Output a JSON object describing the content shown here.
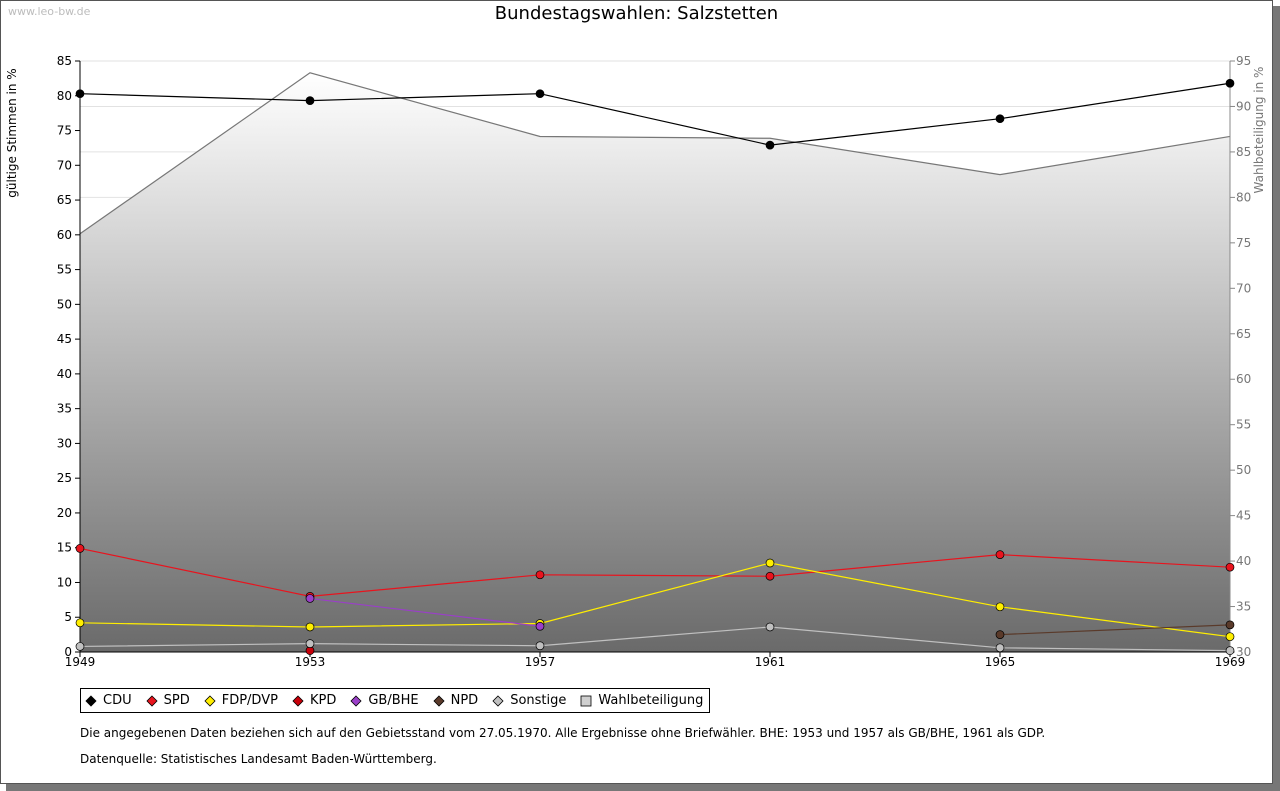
{
  "watermark": "www.leo-bw.de",
  "chart_data": {
    "type": "line",
    "title": "Bundestagswahlen: Salzstetten",
    "x": [
      "1949",
      "1953",
      "1957",
      "1961",
      "1965",
      "1969"
    ],
    "ylabel": "gültige Stimmen in %",
    "y2label": "Wahlbeteiligung in %",
    "ylim": [
      0,
      85
    ],
    "y2lim": [
      30,
      95
    ],
    "yticks": [
      0,
      5,
      10,
      15,
      20,
      25,
      30,
      35,
      40,
      45,
      50,
      55,
      60,
      65,
      70,
      75,
      80,
      85
    ],
    "y2ticks": [
      30,
      35,
      40,
      45,
      50,
      55,
      60,
      65,
      70,
      75,
      80,
      85,
      90,
      95
    ],
    "series": [
      {
        "name": "CDU",
        "color": "#000000",
        "values": [
          80.3,
          79.3,
          80.3,
          72.9,
          76.7,
          81.8
        ]
      },
      {
        "name": "SPD",
        "color": "#e8141e",
        "values": [
          14.9,
          8.0,
          11.1,
          10.9,
          14.0,
          12.2
        ]
      },
      {
        "name": "FDP/DVP",
        "color": "#ffee00",
        "values": [
          4.2,
          3.6,
          4.1,
          12.8,
          6.5,
          2.2
        ]
      },
      {
        "name": "KPD",
        "color": "#c8000a",
        "values": [
          null,
          0.2,
          null,
          null,
          null,
          null
        ]
      },
      {
        "name": "GB/BHE",
        "color": "#9a3fc8",
        "values": [
          null,
          7.7,
          3.7,
          null,
          null,
          null
        ]
      },
      {
        "name": "NPD",
        "color": "#5a3a2a",
        "values": [
          null,
          null,
          null,
          null,
          2.5,
          3.9
        ]
      },
      {
        "name": "Sonstige",
        "color": "#c0c0c0",
        "values": [
          0.8,
          1.2,
          0.9,
          3.6,
          0.6,
          0.2
        ]
      }
    ],
    "turnout": {
      "name": "Wahlbeteiligung",
      "values": [
        76.0,
        93.7,
        86.7,
        86.5,
        82.5,
        86.7
      ]
    }
  },
  "notes": [
    "Die angegebenen Daten beziehen sich auf den Gebietsstand vom 27.05.1970. Alle Ergebnisse ohne Briefwähler. BHE: 1953 und 1957 als GB/BHE, 1961 als GDP.",
    "Datenquelle: Statistisches Landesamt Baden-Württemberg."
  ]
}
